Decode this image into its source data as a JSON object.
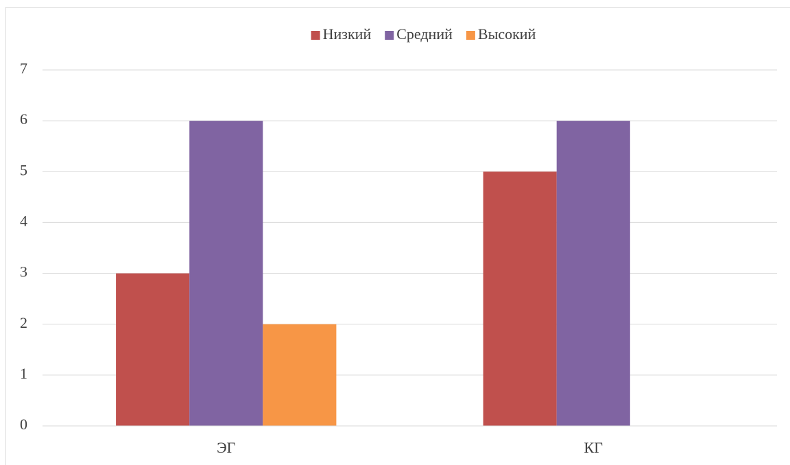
{
  "chart_data": {
    "type": "bar",
    "categories": [
      "ЭГ",
      "КГ"
    ],
    "series": [
      {
        "name": "Низкий",
        "color": "#c0504d",
        "values": [
          3,
          5
        ]
      },
      {
        "name": "Средний",
        "color": "#8064a2",
        "values": [
          6,
          6
        ]
      },
      {
        "name": "Высокий",
        "color": "#f79646",
        "values": [
          2,
          0
        ]
      }
    ],
    "ylim": [
      0,
      7
    ],
    "yticks": [
      0,
      1,
      2,
      3,
      4,
      5,
      6,
      7
    ],
    "grid": true,
    "legend": "top"
  }
}
